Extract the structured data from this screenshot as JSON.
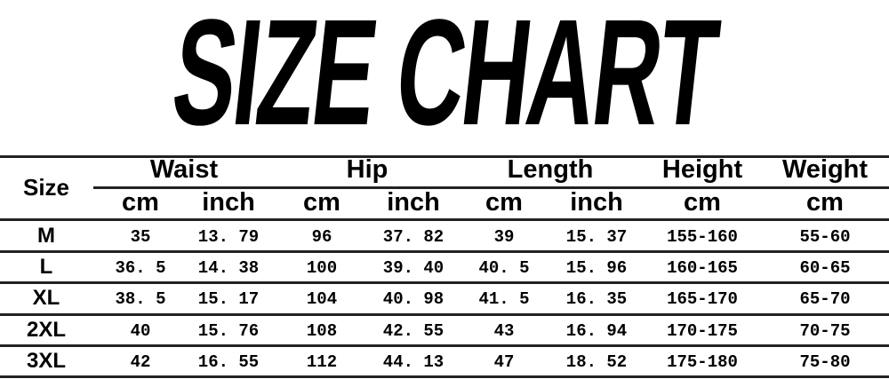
{
  "title": "SIZE CHART",
  "size_header": "Size",
  "groups": [
    "Waist",
    "Hip",
    "Length",
    "Height",
    "Weight"
  ],
  "units": [
    "cm",
    "inch",
    "cm",
    "inch",
    "cm",
    "inch",
    "cm",
    "cm"
  ],
  "rows": [
    {
      "size": "M",
      "values": [
        "35",
        "13. 79",
        "96",
        "37. 82",
        "39",
        "15. 37",
        "155-160",
        "55-60"
      ]
    },
    {
      "size": "L",
      "values": [
        "36. 5",
        "14. 38",
        "100",
        "39. 40",
        "40. 5",
        "15. 96",
        "160-165",
        "60-65"
      ]
    },
    {
      "size": "XL",
      "values": [
        "38. 5",
        "15. 17",
        "104",
        "40. 98",
        "41. 5",
        "16. 35",
        "165-170",
        "65-70"
      ]
    },
    {
      "size": "2XL",
      "values": [
        "40",
        "15. 76",
        "108",
        "42. 55",
        "43",
        "16. 94",
        "170-175",
        "70-75"
      ]
    },
    {
      "size": "3XL",
      "values": [
        "42",
        "16. 55",
        "112",
        "44. 13",
        "47",
        "18. 52",
        "175-180",
        "75-80"
      ]
    }
  ]
}
